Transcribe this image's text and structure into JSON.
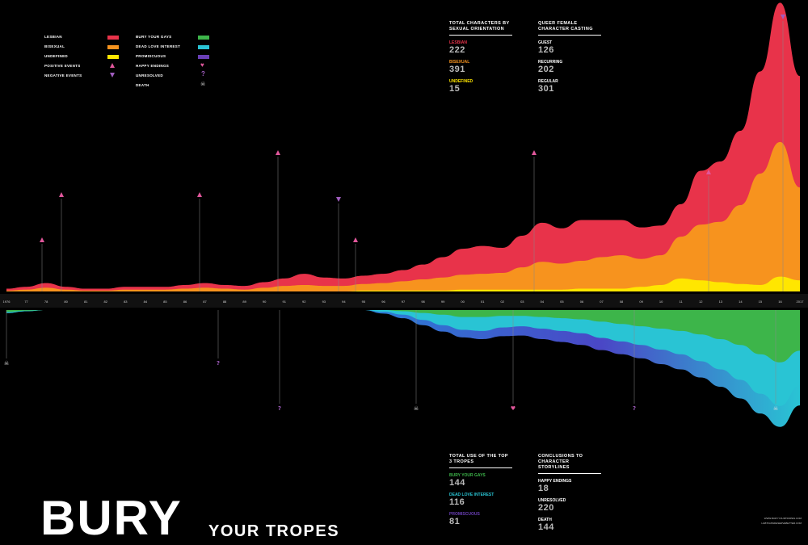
{
  "legend": {
    "left": [
      {
        "label": "LESBIAN",
        "color": "#e8334a"
      },
      {
        "label": "BISEXUAL",
        "color": "#f7931e"
      },
      {
        "label": "UNDEFINED",
        "color": "#ffe600"
      },
      {
        "label": "POSITIVE EVENTS",
        "icon": "triangle-up-icon",
        "color": "#e0579b"
      },
      {
        "label": "NEGATIVE EVENTS",
        "icon": "triangle-down-icon",
        "color": "#a05dbe"
      }
    ],
    "right": [
      {
        "label": "BURY YOUR GAYS",
        "color": "#3db54a"
      },
      {
        "label": "DEAD LOVE INTEREST",
        "color": "#29c4d4"
      },
      {
        "label": "PROMISCUOUS",
        "color": "#6a3fb6"
      },
      {
        "label": "HAPPY ENDINGS",
        "icon": "heart-icon",
        "color": "#e0579b"
      },
      {
        "label": "UNRESOLVED",
        "icon": "question-icon",
        "color": "#a05dbe"
      },
      {
        "label": "DEATH",
        "icon": "skull-icon",
        "color": "#dddddd"
      }
    ]
  },
  "stats": {
    "orientation": {
      "header": "TOTAL CHARACTERS BY SEXUAL ORIENTATION",
      "items": [
        {
          "label": "LESBIAN",
          "value": "222",
          "color": "#e8334a"
        },
        {
          "label": "BISEXUAL",
          "value": "391",
          "color": "#f7931e"
        },
        {
          "label": "UNDEFINED",
          "value": "15",
          "color": "#ffe600"
        }
      ]
    },
    "casting": {
      "header": "QUEER FEMALE CHARACTER CASTING",
      "items": [
        {
          "label": "GUEST",
          "value": "126"
        },
        {
          "label": "RECURRING",
          "value": "202"
        },
        {
          "label": "REGULAR",
          "value": "301"
        }
      ]
    },
    "tropes": {
      "header": "TOTAL USE OF THE TOP 3 TROPES",
      "items": [
        {
          "label": "BURY YOUR GAYS",
          "value": "144",
          "color": "#3db54a"
        },
        {
          "label": "DEAD LOVE INTEREST",
          "value": "116",
          "color": "#29c4d4"
        },
        {
          "label": "PROMISCUOUS",
          "value": "81",
          "color": "#6a3fb6"
        }
      ]
    },
    "conclusions": {
      "header": "CONCLUSIONS TO CHARACTER STORYLINES",
      "items": [
        {
          "label": "HAPPY ENDINGS",
          "value": "18"
        },
        {
          "label": "UNRESOLVED",
          "value": "220"
        },
        {
          "label": "DEATH",
          "value": "144"
        }
      ]
    }
  },
  "title": {
    "main": "BURY",
    "sub": "YOUR TROPES"
  },
  "credit": {
    "line1": "WWW.BURYYOURTROPES.COM",
    "line2": "LGBTFANSDESERVEBETTER.COM"
  },
  "chart_data": {
    "type": "area",
    "x": [
      "1976",
      "77",
      "78",
      "80",
      "81",
      "82",
      "83",
      "84",
      "85",
      "86",
      "87",
      "88",
      "89",
      "90",
      "91",
      "92",
      "93",
      "94",
      "95",
      "96",
      "97",
      "98",
      "99",
      "00",
      "01",
      "02",
      "03",
      "04",
      "05",
      "06",
      "07",
      "08",
      "09",
      "10",
      "11",
      "12",
      "13",
      "14",
      "15",
      "16",
      "2017"
    ],
    "upper_series": [
      {
        "name": "LESBIAN",
        "color": "#e8334a",
        "values": [
          0.2,
          0.3,
          0.5,
          0.3,
          0.2,
          0.2,
          0.3,
          0.3,
          0.3,
          0.4,
          0.5,
          0.4,
          0.4,
          0.6,
          0.8,
          1.2,
          0.9,
          0.8,
          0.9,
          1.0,
          1.2,
          1.6,
          2.2,
          2.8,
          3.0,
          2.7,
          3.4,
          4.2,
          3.8,
          4.4,
          4.0,
          3.8,
          3.4,
          3.2,
          3.5,
          5.8,
          6.5,
          8.0,
          11.0,
          15.0,
          12.0
        ]
      },
      {
        "name": "BISEXUAL",
        "color": "#f7931e",
        "values": [
          0.1,
          0.2,
          0.4,
          0.2,
          0.1,
          0.1,
          0.2,
          0.2,
          0.2,
          0.3,
          0.4,
          0.3,
          0.2,
          0.4,
          0.6,
          0.7,
          0.6,
          0.6,
          0.7,
          0.8,
          1.0,
          1.2,
          1.4,
          1.6,
          1.7,
          1.8,
          2.4,
          3.0,
          2.8,
          3.0,
          3.4,
          3.6,
          3.0,
          3.2,
          4.5,
          6.0,
          6.5,
          8.5,
          12.0,
          14.5,
          10.0
        ]
      },
      {
        "name": "UNDEFINED",
        "color": "#ffe600",
        "values": [
          0,
          0,
          0,
          0,
          0,
          0,
          0,
          0,
          0,
          0,
          0,
          0,
          0,
          0,
          0,
          0,
          0,
          0,
          0.1,
          0.1,
          0.1,
          0.1,
          0.1,
          0.2,
          0.2,
          0.2,
          0.2,
          0.2,
          0.2,
          0.3,
          0.3,
          0.3,
          0.5,
          0.7,
          1.4,
          1.2,
          1.0,
          0.8,
          0.7,
          1.6,
          1.2
        ]
      }
    ],
    "lower_series": [
      {
        "name": "BURY YOUR GAYS",
        "color": "#3db54a",
        "values": [
          0.3,
          0.1,
          0,
          0,
          0,
          0,
          0,
          0,
          0,
          0,
          0,
          0,
          0,
          0,
          0,
          0,
          0,
          0,
          0,
          0,
          0.2,
          0.5,
          0.8,
          1.2,
          1.2,
          1.0,
          1.0,
          1.2,
          1.4,
          1.6,
          2.0,
          2.4,
          2.8,
          3.2,
          3.6,
          4.2,
          5.0,
          6.0,
          7.6,
          9.0,
          7.0
        ]
      },
      {
        "name": "DEAD LOVE INTEREST",
        "color": "#29c4d4",
        "values": [
          0.2,
          0.1,
          0,
          0,
          0,
          0,
          0,
          0,
          0,
          0,
          0,
          0,
          0,
          0,
          0,
          0,
          0,
          0,
          0,
          0.3,
          0.6,
          1.2,
          1.8,
          2.2,
          2.4,
          2.0,
          1.8,
          2.0,
          2.2,
          2.4,
          2.8,
          3.0,
          3.2,
          3.6,
          4.0,
          4.6,
          5.2,
          6.0,
          6.8,
          7.5,
          6.0
        ]
      },
      {
        "name": "PROMISCUOUS",
        "color": "#6a3fb6",
        "values": [
          0,
          0,
          0,
          0,
          0,
          0,
          0,
          0,
          0,
          0,
          0,
          0,
          0,
          0,
          0,
          0,
          0,
          0,
          0,
          0.3,
          0.6,
          0.9,
          1.1,
          1.3,
          1.4,
          1.5,
          1.6,
          1.8,
          1.9,
          2.0,
          2.1,
          2.2,
          2.3,
          2.5,
          2.6,
          2.8,
          3.0,
          3.2,
          3.4,
          3.6,
          3.4
        ]
      }
    ]
  }
}
